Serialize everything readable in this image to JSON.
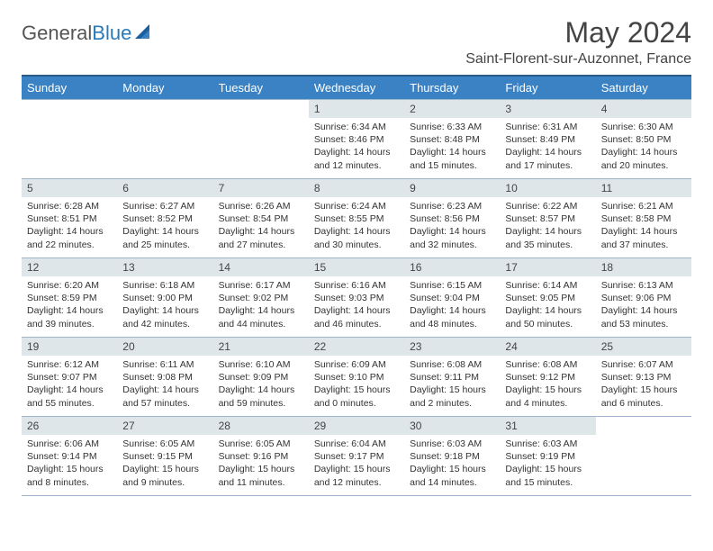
{
  "brand": {
    "name_part1": "General",
    "name_part2": "Blue"
  },
  "header": {
    "month_title": "May 2024",
    "location": "Saint-Florent-sur-Auzonnet, France"
  },
  "colors": {
    "header_bg": "#3b82c4",
    "header_border_top": "#2a5a8a",
    "daynum_bg": "#dfe6ea",
    "cell_border": "#9db8ce",
    "text": "#333333",
    "title_text": "#444444",
    "brand_gray": "#555555",
    "brand_blue": "#2a7ab9",
    "background": "#ffffff"
  },
  "typography": {
    "month_title_fontsize": 32,
    "location_fontsize": 16,
    "weekday_fontsize": 13,
    "daynum_fontsize": 12,
    "cell_fontsize": 10.5
  },
  "calendar": {
    "type": "table",
    "weekdays": [
      "Sunday",
      "Monday",
      "Tuesday",
      "Wednesday",
      "Thursday",
      "Friday",
      "Saturday"
    ],
    "weeks": [
      [
        {
          "day": ""
        },
        {
          "day": ""
        },
        {
          "day": ""
        },
        {
          "day": "1",
          "sunrise": "Sunrise: 6:34 AM",
          "sunset": "Sunset: 8:46 PM",
          "daylight": "Daylight: 14 hours and 12 minutes."
        },
        {
          "day": "2",
          "sunrise": "Sunrise: 6:33 AM",
          "sunset": "Sunset: 8:48 PM",
          "daylight": "Daylight: 14 hours and 15 minutes."
        },
        {
          "day": "3",
          "sunrise": "Sunrise: 6:31 AM",
          "sunset": "Sunset: 8:49 PM",
          "daylight": "Daylight: 14 hours and 17 minutes."
        },
        {
          "day": "4",
          "sunrise": "Sunrise: 6:30 AM",
          "sunset": "Sunset: 8:50 PM",
          "daylight": "Daylight: 14 hours and 20 minutes."
        }
      ],
      [
        {
          "day": "5",
          "sunrise": "Sunrise: 6:28 AM",
          "sunset": "Sunset: 8:51 PM",
          "daylight": "Daylight: 14 hours and 22 minutes."
        },
        {
          "day": "6",
          "sunrise": "Sunrise: 6:27 AM",
          "sunset": "Sunset: 8:52 PM",
          "daylight": "Daylight: 14 hours and 25 minutes."
        },
        {
          "day": "7",
          "sunrise": "Sunrise: 6:26 AM",
          "sunset": "Sunset: 8:54 PM",
          "daylight": "Daylight: 14 hours and 27 minutes."
        },
        {
          "day": "8",
          "sunrise": "Sunrise: 6:24 AM",
          "sunset": "Sunset: 8:55 PM",
          "daylight": "Daylight: 14 hours and 30 minutes."
        },
        {
          "day": "9",
          "sunrise": "Sunrise: 6:23 AM",
          "sunset": "Sunset: 8:56 PM",
          "daylight": "Daylight: 14 hours and 32 minutes."
        },
        {
          "day": "10",
          "sunrise": "Sunrise: 6:22 AM",
          "sunset": "Sunset: 8:57 PM",
          "daylight": "Daylight: 14 hours and 35 minutes."
        },
        {
          "day": "11",
          "sunrise": "Sunrise: 6:21 AM",
          "sunset": "Sunset: 8:58 PM",
          "daylight": "Daylight: 14 hours and 37 minutes."
        }
      ],
      [
        {
          "day": "12",
          "sunrise": "Sunrise: 6:20 AM",
          "sunset": "Sunset: 8:59 PM",
          "daylight": "Daylight: 14 hours and 39 minutes."
        },
        {
          "day": "13",
          "sunrise": "Sunrise: 6:18 AM",
          "sunset": "Sunset: 9:00 PM",
          "daylight": "Daylight: 14 hours and 42 minutes."
        },
        {
          "day": "14",
          "sunrise": "Sunrise: 6:17 AM",
          "sunset": "Sunset: 9:02 PM",
          "daylight": "Daylight: 14 hours and 44 minutes."
        },
        {
          "day": "15",
          "sunrise": "Sunrise: 6:16 AM",
          "sunset": "Sunset: 9:03 PM",
          "daylight": "Daylight: 14 hours and 46 minutes."
        },
        {
          "day": "16",
          "sunrise": "Sunrise: 6:15 AM",
          "sunset": "Sunset: 9:04 PM",
          "daylight": "Daylight: 14 hours and 48 minutes."
        },
        {
          "day": "17",
          "sunrise": "Sunrise: 6:14 AM",
          "sunset": "Sunset: 9:05 PM",
          "daylight": "Daylight: 14 hours and 50 minutes."
        },
        {
          "day": "18",
          "sunrise": "Sunrise: 6:13 AM",
          "sunset": "Sunset: 9:06 PM",
          "daylight": "Daylight: 14 hours and 53 minutes."
        }
      ],
      [
        {
          "day": "19",
          "sunrise": "Sunrise: 6:12 AM",
          "sunset": "Sunset: 9:07 PM",
          "daylight": "Daylight: 14 hours and 55 minutes."
        },
        {
          "day": "20",
          "sunrise": "Sunrise: 6:11 AM",
          "sunset": "Sunset: 9:08 PM",
          "daylight": "Daylight: 14 hours and 57 minutes."
        },
        {
          "day": "21",
          "sunrise": "Sunrise: 6:10 AM",
          "sunset": "Sunset: 9:09 PM",
          "daylight": "Daylight: 14 hours and 59 minutes."
        },
        {
          "day": "22",
          "sunrise": "Sunrise: 6:09 AM",
          "sunset": "Sunset: 9:10 PM",
          "daylight": "Daylight: 15 hours and 0 minutes."
        },
        {
          "day": "23",
          "sunrise": "Sunrise: 6:08 AM",
          "sunset": "Sunset: 9:11 PM",
          "daylight": "Daylight: 15 hours and 2 minutes."
        },
        {
          "day": "24",
          "sunrise": "Sunrise: 6:08 AM",
          "sunset": "Sunset: 9:12 PM",
          "daylight": "Daylight: 15 hours and 4 minutes."
        },
        {
          "day": "25",
          "sunrise": "Sunrise: 6:07 AM",
          "sunset": "Sunset: 9:13 PM",
          "daylight": "Daylight: 15 hours and 6 minutes."
        }
      ],
      [
        {
          "day": "26",
          "sunrise": "Sunrise: 6:06 AM",
          "sunset": "Sunset: 9:14 PM",
          "daylight": "Daylight: 15 hours and 8 minutes."
        },
        {
          "day": "27",
          "sunrise": "Sunrise: 6:05 AM",
          "sunset": "Sunset: 9:15 PM",
          "daylight": "Daylight: 15 hours and 9 minutes."
        },
        {
          "day": "28",
          "sunrise": "Sunrise: 6:05 AM",
          "sunset": "Sunset: 9:16 PM",
          "daylight": "Daylight: 15 hours and 11 minutes."
        },
        {
          "day": "29",
          "sunrise": "Sunrise: 6:04 AM",
          "sunset": "Sunset: 9:17 PM",
          "daylight": "Daylight: 15 hours and 12 minutes."
        },
        {
          "day": "30",
          "sunrise": "Sunrise: 6:03 AM",
          "sunset": "Sunset: 9:18 PM",
          "daylight": "Daylight: 15 hours and 14 minutes."
        },
        {
          "day": "31",
          "sunrise": "Sunrise: 6:03 AM",
          "sunset": "Sunset: 9:19 PM",
          "daylight": "Daylight: 15 hours and 15 minutes."
        },
        {
          "day": ""
        }
      ]
    ]
  }
}
